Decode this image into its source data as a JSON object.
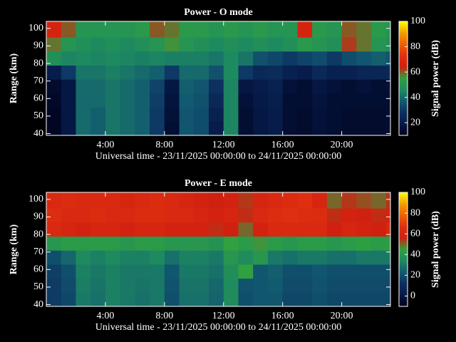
{
  "chart_data": [
    {
      "type": "heatmap",
      "title": "Power - O mode",
      "xlabel": "Universal time - 23/11/2025 00:00:00 to 24/11/2025 00:00:00",
      "ylabel": "Range (km)",
      "colorbar_label": "Signal power (dB)",
      "x": [
        0,
        1,
        2,
        3,
        4,
        5,
        6,
        7,
        8,
        9,
        10,
        11,
        12,
        13,
        14,
        15,
        16,
        17,
        18,
        19,
        20,
        21,
        22,
        23,
        23.3
      ],
      "y": [
        39,
        47,
        55,
        63,
        71,
        79,
        87,
        95,
        104
      ],
      "z": [
        [
          12,
          18,
          40,
          38,
          42,
          40,
          38,
          30,
          15,
          36,
          34,
          20,
          45,
          15,
          18,
          20,
          15,
          14,
          16,
          15,
          14,
          14,
          14,
          15
        ],
        [
          12,
          18,
          40,
          38,
          42,
          40,
          38,
          30,
          16,
          36,
          34,
          22,
          45,
          15,
          18,
          20,
          15,
          14,
          16,
          15,
          14,
          14,
          14,
          15
        ],
        [
          13,
          18,
          40,
          40,
          42,
          40,
          38,
          31,
          17,
          37,
          35,
          25,
          45,
          16,
          19,
          21,
          15,
          15,
          17,
          15,
          15,
          15,
          15,
          15
        ],
        [
          14,
          18,
          40,
          40,
          42,
          40,
          38,
          32,
          18,
          38,
          36,
          28,
          45,
          18,
          20,
          22,
          16,
          15,
          18,
          16,
          15,
          16,
          15,
          16
        ],
        [
          20,
          30,
          42,
          42,
          44,
          42,
          40,
          38,
          30,
          40,
          40,
          35,
          46,
          30,
          25,
          26,
          22,
          20,
          25,
          22,
          22,
          24,
          24,
          25
        ],
        [
          48,
          45,
          46,
          45,
          46,
          45,
          44,
          45,
          44,
          44,
          44,
          42,
          46,
          42,
          35,
          33,
          30,
          32,
          34,
          30,
          34,
          36,
          38,
          36
        ],
        [
          58,
          50,
          48,
          46,
          48,
          46,
          48,
          50,
          56,
          50,
          48,
          46,
          48,
          46,
          48,
          46,
          48,
          52,
          50,
          48,
          62,
          58,
          50,
          48
        ],
        [
          66,
          60,
          50,
          50,
          50,
          50,
          52,
          60,
          58,
          52,
          52,
          50,
          52,
          50,
          52,
          50,
          50,
          66,
          52,
          50,
          60,
          58,
          52,
          50
        ]
      ],
      "xlim": [
        0,
        23.3
      ],
      "ylim": [
        39,
        104
      ],
      "xticks": [
        {
          "value": 4,
          "label": "4:00"
        },
        {
          "value": 8,
          "label": "8:00"
        },
        {
          "value": 12,
          "label": "12:00"
        },
        {
          "value": 16,
          "label": "16:00"
        },
        {
          "value": 20,
          "label": "20:00"
        }
      ],
      "yticks": [
        40,
        50,
        60,
        70,
        80,
        90,
        100
      ],
      "clim": [
        10,
        100
      ],
      "cticks": [
        20,
        40,
        60,
        80,
        100
      ],
      "colormap": [
        "#000018",
        "#061a48",
        "#0c3060",
        "#125a70",
        "#1e8a60",
        "#30a040",
        "#d02010",
        "#e03010",
        "#f06000",
        "#f0a000",
        "#ffff00"
      ]
    },
    {
      "type": "heatmap",
      "title": "Power - E mode",
      "xlabel": "Universal time - 23/11/2025 00:00:00 to 24/11/2025 00:00:00",
      "ylabel": "Range (km)",
      "colorbar_label": "Signal power (dB)",
      "x": [
        0,
        1,
        2,
        3,
        4,
        5,
        6,
        7,
        8,
        9,
        10,
        11,
        12,
        13,
        14,
        15,
        16,
        17,
        18,
        19,
        20,
        21,
        22,
        23,
        23.3
      ],
      "y": [
        39,
        47,
        55,
        63,
        71,
        79,
        87,
        95,
        104
      ],
      "z": [
        [
          15,
          18,
          30,
          28,
          32,
          30,
          28,
          30,
          20,
          28,
          28,
          25,
          35,
          20,
          22,
          22,
          18,
          18,
          20,
          18,
          18,
          18,
          18,
          18
        ],
        [
          15,
          19,
          31,
          29,
          32,
          30,
          29,
          30,
          21,
          29,
          29,
          26,
          35,
          21,
          22,
          23,
          19,
          19,
          21,
          19,
          19,
          19,
          19,
          19
        ],
        [
          16,
          20,
          32,
          30,
          32,
          30,
          30,
          30,
          22,
          30,
          30,
          28,
          36,
          45,
          22,
          24,
          20,
          20,
          22,
          20,
          20,
          20,
          20,
          20
        ],
        [
          20,
          26,
          34,
          32,
          34,
          32,
          32,
          34,
          28,
          32,
          32,
          30,
          40,
          35,
          40,
          30,
          28,
          30,
          30,
          28,
          28,
          30,
          30,
          30
        ],
        [
          40,
          42,
          42,
          42,
          42,
          40,
          42,
          42,
          40,
          40,
          40,
          38,
          45,
          42,
          46,
          42,
          40,
          42,
          42,
          40,
          42,
          44,
          42,
          44
        ],
        [
          62,
          60,
          58,
          60,
          60,
          58,
          60,
          60,
          58,
          58,
          58,
          55,
          56,
          50,
          58,
          62,
          62,
          62,
          62,
          56,
          60,
          58,
          56,
          62
        ],
        [
          65,
          62,
          62,
          64,
          62,
          62,
          64,
          64,
          62,
          62,
          60,
          58,
          60,
          55,
          62,
          65,
          66,
          65,
          64,
          55,
          58,
          56,
          55,
          58
        ],
        [
          62,
          64,
          62,
          62,
          62,
          60,
          62,
          64,
          62,
          60,
          58,
          56,
          58,
          54,
          60,
          62,
          64,
          66,
          60,
          50,
          54,
          52,
          50,
          54
        ]
      ],
      "xlim": [
        0,
        23.3
      ],
      "ylim": [
        39,
        104
      ],
      "xticks": [
        {
          "value": 4,
          "label": "4:00"
        },
        {
          "value": 8,
          "label": "8:00"
        },
        {
          "value": 12,
          "label": "12:00"
        },
        {
          "value": 16,
          "label": "16:00"
        },
        {
          "value": 20,
          "label": "20:00"
        }
      ],
      "yticks": [
        40,
        50,
        60,
        70,
        80,
        90,
        100
      ],
      "clim": [
        -10,
        100
      ],
      "cticks": [
        0,
        20,
        40,
        60,
        80,
        100
      ],
      "colormap": [
        "#000018",
        "#061a48",
        "#0c3060",
        "#125a70",
        "#1e8a60",
        "#30a040",
        "#d02010",
        "#e03010",
        "#f06000",
        "#f0a000",
        "#ffff00"
      ]
    }
  ]
}
